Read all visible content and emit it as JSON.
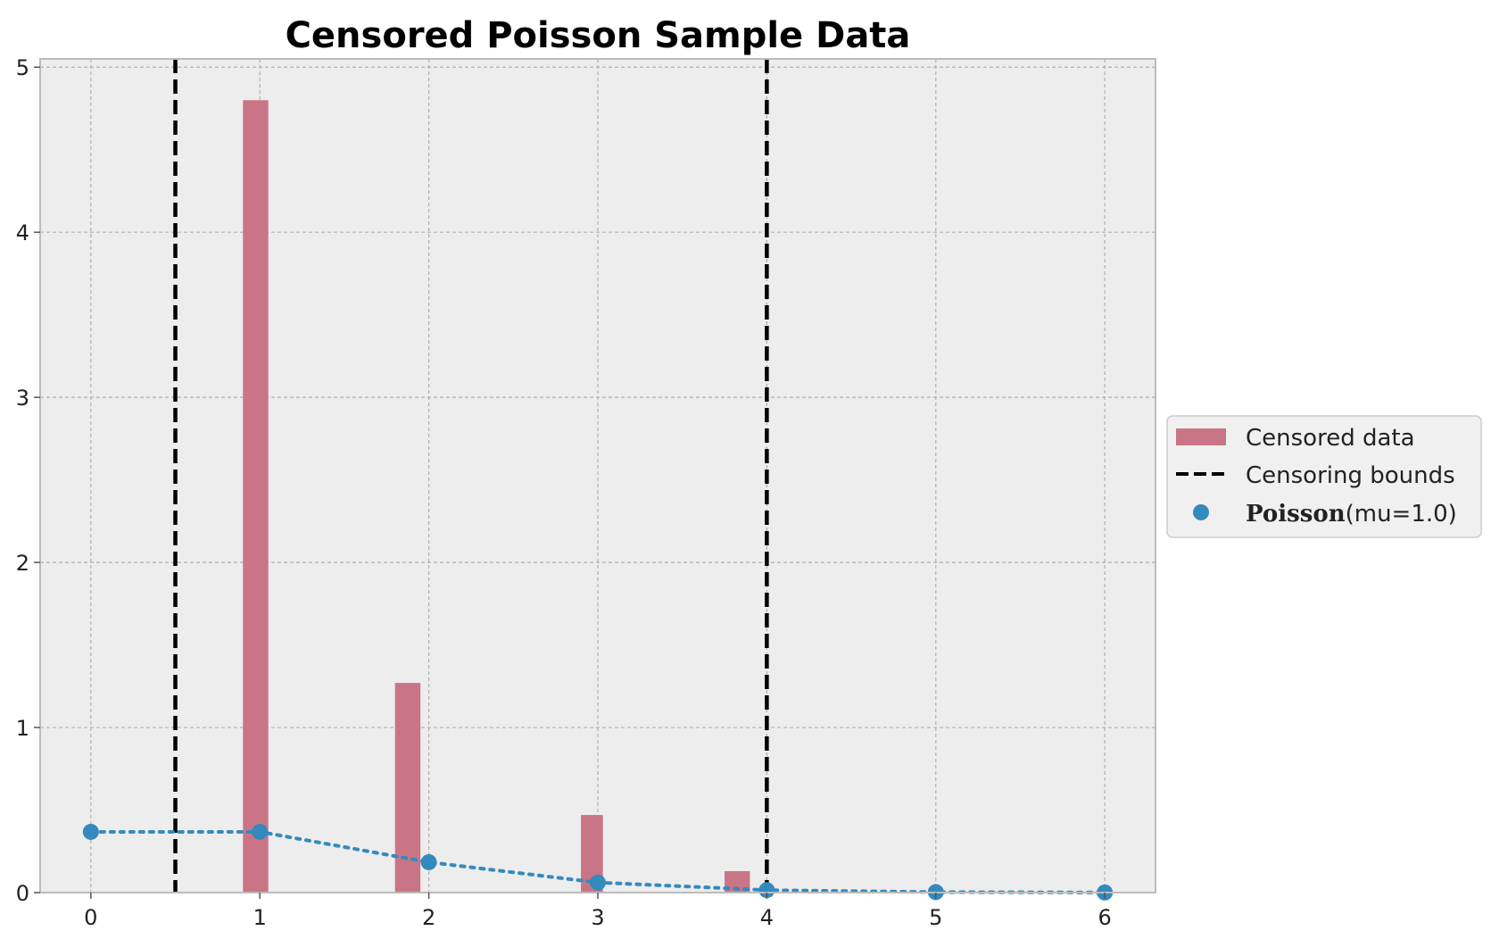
{
  "chart_data": {
    "type": "bar",
    "title": "Censored Poisson Sample Data",
    "xlabel": "",
    "ylabel": "",
    "xlim": [
      -0.3,
      6.3
    ],
    "ylim": [
      0,
      5.05
    ],
    "x_ticks": [
      "0",
      "1",
      "2",
      "3",
      "4",
      "5",
      "6"
    ],
    "y_ticks": [
      "0",
      "1",
      "2",
      "3",
      "4",
      "5"
    ],
    "grid": true,
    "legend_position": "center-right outside",
    "colors": {
      "bars": "#c97585",
      "bounds": "#000000",
      "poisson": "#348abd",
      "plot_bg": "#ededed",
      "grid": "#b0b0b0"
    },
    "histogram": {
      "name": "Censored data",
      "bins": [
        {
          "x0": 0.9,
          "x1": 1.05,
          "height": 4.8
        },
        {
          "x0": 1.8,
          "x1": 1.95,
          "height": 1.27
        },
        {
          "x0": 2.9,
          "x1": 3.03,
          "height": 0.47
        },
        {
          "x0": 3.75,
          "x1": 3.9,
          "height": 0.13
        }
      ]
    },
    "censoring_bounds": {
      "name": "Censoring bounds",
      "x": [
        0.5,
        4.0
      ]
    },
    "poisson": {
      "name_bold": "Poisson",
      "name_rest": "(mu=1.0)",
      "x": [
        0,
        1,
        2,
        3,
        4,
        5,
        6
      ],
      "y": [
        0.368,
        0.368,
        0.184,
        0.061,
        0.015,
        0.003,
        0.0005
      ]
    },
    "legend": {
      "censored_data": "Censored data",
      "censoring_bounds": "Censoring bounds",
      "poisson_bold": "Poisson",
      "poisson_rest": "(mu=1.0)"
    }
  }
}
